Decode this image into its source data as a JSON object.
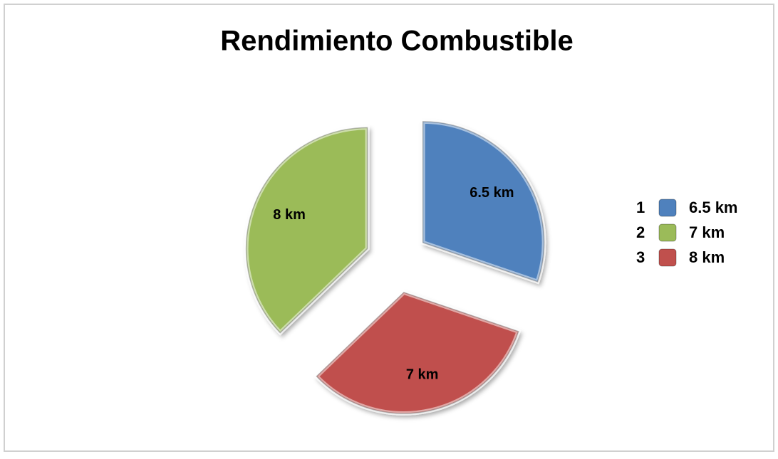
{
  "chart_data": {
    "type": "pie",
    "title": "Rendimiento Combustible",
    "categories": [
      "1",
      "2",
      "3"
    ],
    "values": [
      6.5,
      7,
      8
    ],
    "value_labels": [
      "6.5 km",
      "7 km",
      "8 km"
    ],
    "colors": [
      "#4f81bd",
      "#c0504d",
      "#9bbb59"
    ],
    "legend_colors": [
      "#4f81bd",
      "#9bbb59",
      "#c0504d"
    ],
    "legend": "right"
  }
}
